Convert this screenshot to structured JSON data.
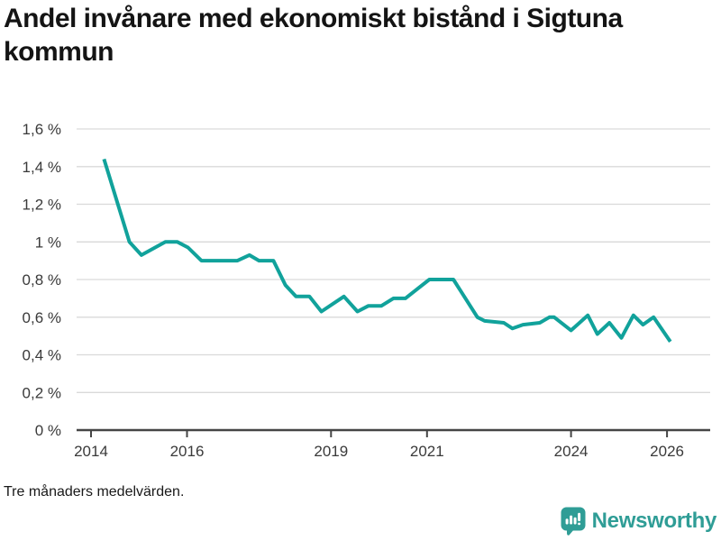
{
  "header": {
    "title": "Andel invånare med ekonomiskt bistånd i Sigtuna kommun"
  },
  "footer": {
    "note": "Tre månaders medelvärden."
  },
  "brand": {
    "name": "Newsworthy",
    "icon": "bar-chart-speech-bubble"
  },
  "colors": {
    "line": "#11a29b",
    "grid": "#d9d9d9",
    "axis": "#454545",
    "label": "#3a3a3a",
    "brand_teal": "#2f9d96"
  },
  "chart_data": {
    "type": "line",
    "title": "Andel invånare med ekonomiskt bistånd i Sigtuna kommun",
    "subtitle_note": "Tre månaders medelvärden.",
    "unit": "%",
    "grid": true,
    "legend": false,
    "xlim": [
      2013.7,
      2026.9
    ],
    "ylim": [
      0,
      1.6
    ],
    "yticks": [
      {
        "value": 0,
        "label": "0 %"
      },
      {
        "value": 0.2,
        "label": "0,2 %"
      },
      {
        "value": 0.4,
        "label": "0,4 %"
      },
      {
        "value": 0.6,
        "label": "0,6 %"
      },
      {
        "value": 0.8,
        "label": "0,8 %"
      },
      {
        "value": 1.0,
        "label": "1 %"
      },
      {
        "value": 1.2,
        "label": "1,2 %"
      },
      {
        "value": 1.4,
        "label": "1,4 %"
      },
      {
        "value": 1.6,
        "label": "1,6 %"
      }
    ],
    "xticks": [
      {
        "value": 2014,
        "label": "2014"
      },
      {
        "value": 2016,
        "label": "2016"
      },
      {
        "value": 2019,
        "label": "2019"
      },
      {
        "value": 2021,
        "label": "2021"
      },
      {
        "value": 2024,
        "label": "2024"
      },
      {
        "value": 2026,
        "label": "2026"
      }
    ],
    "series": [
      {
        "name": "Sigtuna kommun",
        "points": [
          [
            2014.27,
            1.44
          ],
          [
            2014.8,
            1.0
          ],
          [
            2015.05,
            0.93
          ],
          [
            2015.55,
            1.0
          ],
          [
            2015.8,
            1.0
          ],
          [
            2016.02,
            0.97
          ],
          [
            2016.3,
            0.9
          ],
          [
            2017.05,
            0.9
          ],
          [
            2017.3,
            0.93
          ],
          [
            2017.5,
            0.9
          ],
          [
            2017.8,
            0.9
          ],
          [
            2018.05,
            0.77
          ],
          [
            2018.27,
            0.71
          ],
          [
            2018.55,
            0.71
          ],
          [
            2018.8,
            0.63
          ],
          [
            2019.27,
            0.71
          ],
          [
            2019.55,
            0.63
          ],
          [
            2019.78,
            0.66
          ],
          [
            2020.05,
            0.66
          ],
          [
            2020.3,
            0.7
          ],
          [
            2020.55,
            0.7
          ],
          [
            2020.8,
            0.75
          ],
          [
            2021.05,
            0.8
          ],
          [
            2021.55,
            0.8
          ],
          [
            2022.05,
            0.6
          ],
          [
            2022.2,
            0.58
          ],
          [
            2022.6,
            0.57
          ],
          [
            2022.78,
            0.54
          ],
          [
            2023.0,
            0.56
          ],
          [
            2023.35,
            0.57
          ],
          [
            2023.55,
            0.6
          ],
          [
            2023.65,
            0.6
          ],
          [
            2024.0,
            0.53
          ],
          [
            2024.35,
            0.61
          ],
          [
            2024.55,
            0.51
          ],
          [
            2024.8,
            0.57
          ],
          [
            2025.05,
            0.49
          ],
          [
            2025.3,
            0.61
          ],
          [
            2025.5,
            0.56
          ],
          [
            2025.72,
            0.6
          ],
          [
            2026.07,
            0.47
          ]
        ]
      }
    ]
  }
}
